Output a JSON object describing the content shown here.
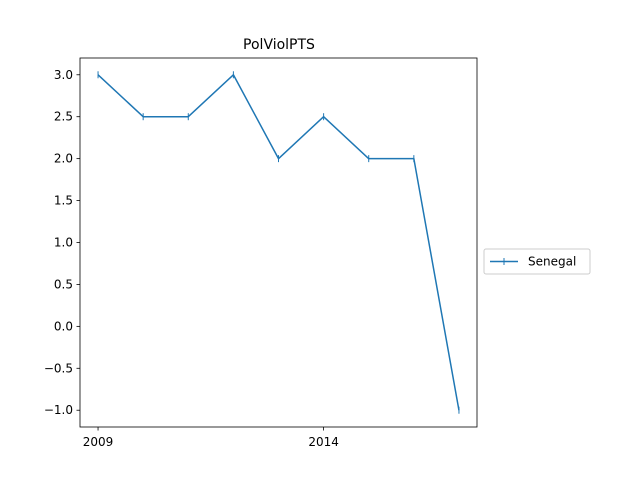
{
  "chart_data": {
    "type": "line",
    "title": "PolViolPTS",
    "xlabel": "",
    "ylabel": "",
    "x": [
      2009,
      2010,
      2011,
      2012,
      2013,
      2014,
      2015,
      2016,
      2017
    ],
    "x_ticks": [
      2009,
      2014
    ],
    "x_tick_labels": [
      "2009",
      "2014"
    ],
    "y_ticks": [
      -1.0,
      -0.5,
      0.0,
      0.5,
      1.0,
      1.5,
      2.0,
      2.5,
      3.0
    ],
    "y_tick_labels": [
      "−1.0",
      "−0.5",
      "0.0",
      "0.5",
      "1.0",
      "1.5",
      "2.0",
      "2.5",
      "3.0"
    ],
    "xlim": [
      2008.6,
      2017.4
    ],
    "ylim": [
      -1.2,
      3.2
    ],
    "grid": false,
    "legend_position": "outside-right",
    "series": [
      {
        "name": "Senegal",
        "color": "#1f77b4",
        "marker": "vertical-tick",
        "values": [
          3.0,
          2.5,
          2.5,
          3.0,
          2.0,
          2.5,
          2.0,
          2.0,
          -1.0
        ]
      }
    ]
  }
}
